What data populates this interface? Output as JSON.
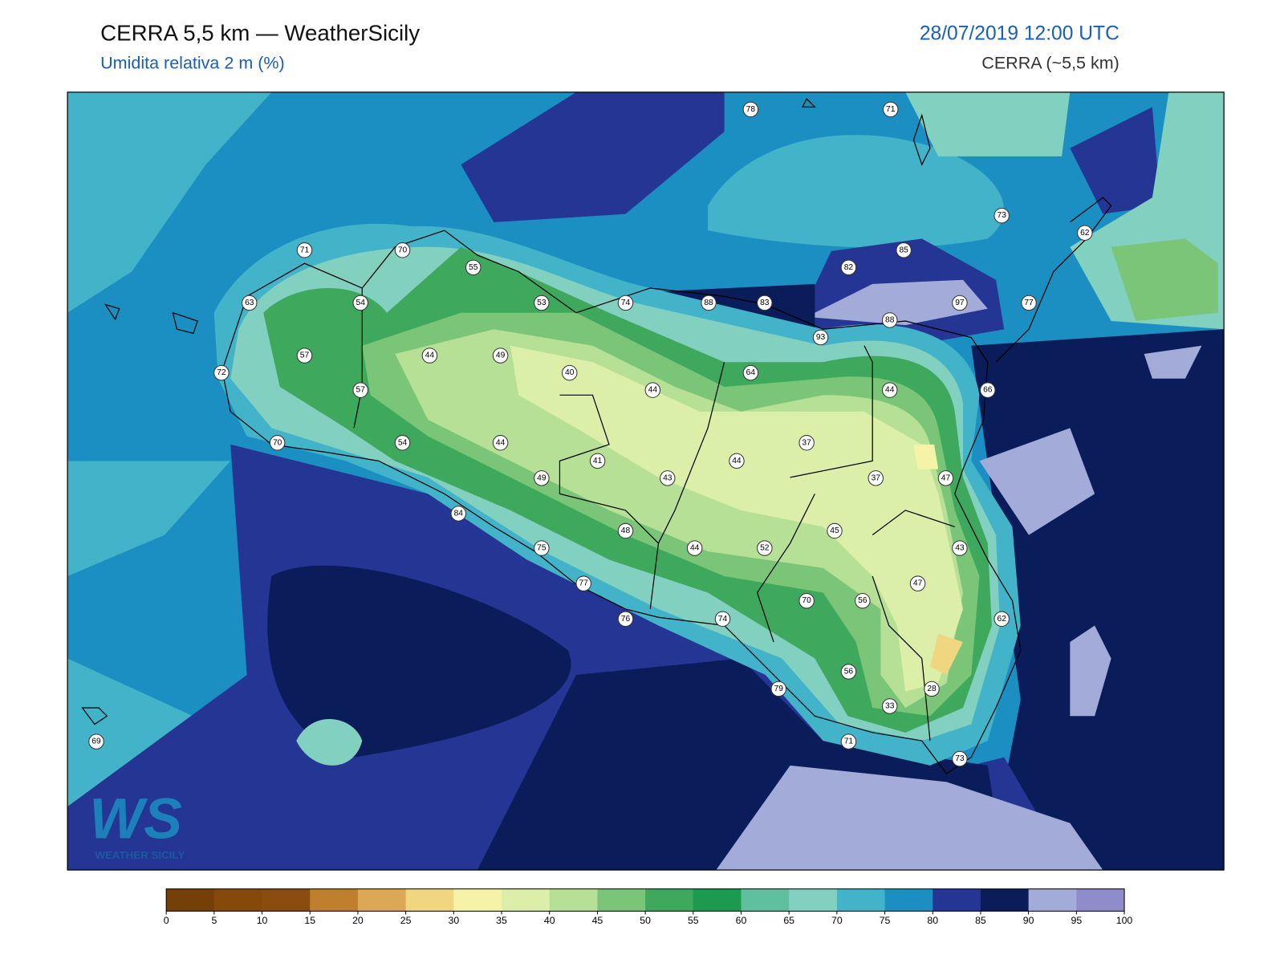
{
  "header": {
    "title": "CERRA 5,5 km — WeatherSicily",
    "subtitle": "Umidita relativa 2 m (%)",
    "datetime": "28/07/2019 12:00 UTC",
    "source": "CERRA (~5,5 km)"
  },
  "logo": {
    "mark": "WS",
    "text": "WEATHER SICILY"
  },
  "stations": [
    71,
    70,
    55,
    63,
    54,
    53,
    74,
    88,
    83,
    85,
    82,
    97,
    77,
    88,
    93,
    78,
    71,
    73,
    62,
    57,
    44,
    49,
    40,
    44,
    64,
    44,
    66,
    72,
    57,
    70,
    54,
    44,
    41,
    43,
    44,
    37,
    37,
    47,
    49,
    84,
    48,
    44,
    52,
    45,
    43,
    75,
    77,
    76,
    74,
    70,
    56,
    47,
    62,
    79,
    56,
    28,
    33,
    71,
    73,
    69
  ],
  "colorbar": {
    "ticks": [
      0,
      5,
      10,
      15,
      20,
      25,
      30,
      35,
      40,
      45,
      50,
      55,
      60,
      65,
      70,
      75,
      80,
      85,
      90,
      95,
      100
    ],
    "colors": [
      "#754008",
      "#86490c",
      "#8b4c10",
      "#c07f2e",
      "#dca858",
      "#f0d680",
      "#f5f3a8",
      "#dcefa8",
      "#b5e095",
      "#7ac578",
      "#3ea85c",
      "#1b9a50",
      "#5fc0a0",
      "#82d0c0",
      "#42b3c8",
      "#1b8fc2",
      "#243594",
      "#0a1c5a",
      "#a3acd8",
      "#8f8ccb"
    ]
  }
}
